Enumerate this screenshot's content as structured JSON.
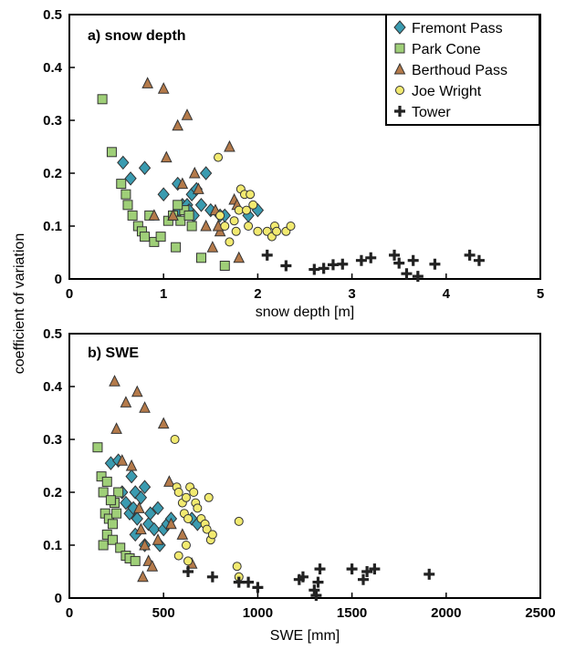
{
  "ylabel": "coefficient of variation",
  "symbols": {
    "Fremont Pass": {
      "shape": "diamond",
      "color": "#3a9bb0"
    },
    "Park Cone": {
      "shape": "square",
      "color": "#9fcf78"
    },
    "Berthoud Pass": {
      "shape": "triangle",
      "color": "#b47a4a"
    },
    "Joe Wright": {
      "shape": "circle",
      "color": "#f2ea70"
    },
    "Tower": {
      "shape": "cross",
      "color": "#222222"
    }
  },
  "chart_data": [
    {
      "type": "scatter",
      "title": "a) snow depth",
      "xlabel": "snow depth [m]",
      "ylabel": "",
      "xlim": [
        0,
        5
      ],
      "ylim": [
        0,
        0.5
      ],
      "xticks": [
        "0",
        "1",
        "2",
        "3",
        "4",
        "5"
      ],
      "yticks": [
        "0",
        "0.1",
        "0.2",
        "0.3",
        "0.4",
        "0.5"
      ],
      "legend": "top-right",
      "series": [
        {
          "name": "Fremont Pass",
          "points": [
            [
              0.57,
              0.22
            ],
            [
              0.65,
              0.19
            ],
            [
              0.8,
              0.21
            ],
            [
              1.0,
              0.16
            ],
            [
              1.15,
              0.18
            ],
            [
              1.17,
              0.13
            ],
            [
              1.2,
              0.14
            ],
            [
              1.25,
              0.14
            ],
            [
              1.3,
              0.16
            ],
            [
              1.35,
              0.17
            ],
            [
              1.27,
              0.13
            ],
            [
              1.32,
              0.12
            ],
            [
              1.4,
              0.14
            ],
            [
              1.45,
              0.2
            ],
            [
              1.5,
              0.13
            ],
            [
              1.6,
              0.12
            ],
            [
              1.65,
              0.12
            ],
            [
              1.9,
              0.12
            ],
            [
              2.0,
              0.13
            ]
          ]
        },
        {
          "name": "Park Cone",
          "points": [
            [
              0.35,
              0.34
            ],
            [
              0.45,
              0.24
            ],
            [
              0.55,
              0.18
            ],
            [
              0.6,
              0.16
            ],
            [
              0.62,
              0.14
            ],
            [
              0.67,
              0.12
            ],
            [
              0.73,
              0.1
            ],
            [
              0.77,
              0.09
            ],
            [
              0.8,
              0.08
            ],
            [
              0.85,
              0.12
            ],
            [
              0.9,
              0.07
            ],
            [
              0.97,
              0.08
            ],
            [
              1.05,
              0.11
            ],
            [
              1.1,
              0.12
            ],
            [
              1.13,
              0.06
            ],
            [
              1.18,
              0.11
            ],
            [
              1.22,
              0.13
            ],
            [
              1.27,
              0.12
            ],
            [
              1.3,
              0.1
            ],
            [
              1.15,
              0.14
            ],
            [
              1.4,
              0.04
            ],
            [
              1.65,
              0.025
            ]
          ]
        },
        {
          "name": "Berthoud Pass",
          "points": [
            [
              0.83,
              0.37
            ],
            [
              1.0,
              0.36
            ],
            [
              1.15,
              0.29
            ],
            [
              1.25,
              0.31
            ],
            [
              1.03,
              0.23
            ],
            [
              0.9,
              0.12
            ],
            [
              1.1,
              0.12
            ],
            [
              1.2,
              0.18
            ],
            [
              1.33,
              0.2
            ],
            [
              1.37,
              0.17
            ],
            [
              1.45,
              0.1
            ],
            [
              1.52,
              0.06
            ],
            [
              1.55,
              0.13
            ],
            [
              1.6,
              0.09
            ],
            [
              1.7,
              0.25
            ],
            [
              1.75,
              0.15
            ],
            [
              1.58,
              0.1
            ],
            [
              1.78,
              0.14
            ],
            [
              1.8,
              0.04
            ]
          ]
        },
        {
          "name": "Joe Wright",
          "points": [
            [
              1.58,
              0.23
            ],
            [
              1.6,
              0.12
            ],
            [
              1.65,
              0.1
            ],
            [
              1.7,
              0.07
            ],
            [
              1.75,
              0.11
            ],
            [
              1.77,
              0.09
            ],
            [
              1.8,
              0.13
            ],
            [
              1.82,
              0.17
            ],
            [
              1.86,
              0.16
            ],
            [
              1.88,
              0.13
            ],
            [
              1.92,
              0.16
            ],
            [
              1.95,
              0.14
            ],
            [
              1.9,
              0.1
            ],
            [
              2.0,
              0.09
            ],
            [
              2.1,
              0.09
            ],
            [
              2.15,
              0.08
            ],
            [
              2.18,
              0.1
            ],
            [
              2.2,
              0.09
            ],
            [
              2.3,
              0.09
            ],
            [
              2.35,
              0.1
            ]
          ]
        },
        {
          "name": "Tower",
          "points": [
            [
              2.1,
              0.045
            ],
            [
              2.3,
              0.025
            ],
            [
              2.6,
              0.018
            ],
            [
              2.7,
              0.02
            ],
            [
              2.8,
              0.027
            ],
            [
              2.9,
              0.028
            ],
            [
              3.1,
              0.035
            ],
            [
              3.2,
              0.04
            ],
            [
              3.45,
              0.045
            ],
            [
              3.5,
              0.03
            ],
            [
              3.58,
              0.01
            ],
            [
              3.65,
              0.035
            ],
            [
              3.7,
              0.005
            ],
            [
              3.88,
              0.028
            ],
            [
              4.25,
              0.045
            ],
            [
              4.35,
              0.035
            ]
          ]
        }
      ]
    },
    {
      "type": "scatter",
      "title": "b) SWE",
      "xlabel": "SWE [mm]",
      "ylabel": "",
      "xlim": [
        0,
        2500
      ],
      "ylim": [
        0,
        0.5
      ],
      "xticks": [
        "0",
        "500",
        "1000",
        "1500",
        "2000",
        "2500"
      ],
      "yticks": [
        "0",
        "0.1",
        "0.2",
        "0.3",
        "0.4",
        "0.5"
      ],
      "series": [
        {
          "name": "Fremont Pass",
          "points": [
            [
              220,
              0.255
            ],
            [
              260,
              0.26
            ],
            [
              330,
              0.23
            ],
            [
              280,
              0.2
            ],
            [
              300,
              0.18
            ],
            [
              320,
              0.16
            ],
            [
              340,
              0.17
            ],
            [
              350,
              0.2
            ],
            [
              360,
              0.15
            ],
            [
              380,
              0.19
            ],
            [
              400,
              0.21
            ],
            [
              420,
              0.14
            ],
            [
              430,
              0.16
            ],
            [
              450,
              0.13
            ],
            [
              470,
              0.17
            ],
            [
              480,
              0.1
            ],
            [
              500,
              0.13
            ],
            [
              520,
              0.14
            ],
            [
              540,
              0.15
            ],
            [
              650,
              0.15
            ],
            [
              680,
              0.14
            ],
            [
              350,
              0.12
            ],
            [
              400,
              0.1
            ]
          ]
        },
        {
          "name": "Park Cone",
          "points": [
            [
              150,
              0.285
            ],
            [
              170,
              0.23
            ],
            [
              180,
              0.2
            ],
            [
              200,
              0.22
            ],
            [
              190,
              0.16
            ],
            [
              210,
              0.15
            ],
            [
              230,
              0.14
            ],
            [
              200,
              0.12
            ],
            [
              240,
              0.18
            ],
            [
              180,
              0.1
            ],
            [
              230,
              0.11
            ],
            [
              270,
              0.095
            ],
            [
              300,
              0.08
            ],
            [
              320,
              0.075
            ],
            [
              260,
              0.2
            ],
            [
              250,
              0.16
            ],
            [
              220,
              0.185
            ],
            [
              350,
              0.07
            ]
          ]
        },
        {
          "name": "Berthoud Pass",
          "points": [
            [
              240,
              0.41
            ],
            [
              300,
              0.37
            ],
            [
              360,
              0.39
            ],
            [
              400,
              0.36
            ],
            [
              500,
              0.33
            ],
            [
              250,
              0.32
            ],
            [
              280,
              0.26
            ],
            [
              330,
              0.25
            ],
            [
              530,
              0.22
            ],
            [
              370,
              0.17
            ],
            [
              380,
              0.13
            ],
            [
              400,
              0.1
            ],
            [
              420,
              0.07
            ],
            [
              390,
              0.04
            ],
            [
              440,
              0.06
            ],
            [
              470,
              0.11
            ],
            [
              540,
              0.14
            ],
            [
              600,
              0.12
            ],
            [
              650,
              0.065
            ]
          ]
        },
        {
          "name": "Joe Wright",
          "points": [
            [
              560,
              0.3
            ],
            [
              570,
              0.21
            ],
            [
              580,
              0.2
            ],
            [
              600,
              0.18
            ],
            [
              610,
              0.16
            ],
            [
              620,
              0.19
            ],
            [
              630,
              0.15
            ],
            [
              640,
              0.21
            ],
            [
              660,
              0.2
            ],
            [
              670,
              0.18
            ],
            [
              680,
              0.17
            ],
            [
              700,
              0.15
            ],
            [
              720,
              0.14
            ],
            [
              730,
              0.13
            ],
            [
              740,
              0.19
            ],
            [
              750,
              0.11
            ],
            [
              760,
              0.12
            ],
            [
              620,
              0.1
            ],
            [
              580,
              0.08
            ],
            [
              630,
              0.07
            ],
            [
              900,
              0.145
            ],
            [
              890,
              0.06
            ],
            [
              900,
              0.04
            ]
          ]
        },
        {
          "name": "Tower",
          "points": [
            [
              630,
              0.05
            ],
            [
              760,
              0.04
            ],
            [
              900,
              0.03
            ],
            [
              950,
              0.03
            ],
            [
              1000,
              0.02
            ],
            [
              1220,
              0.035
            ],
            [
              1240,
              0.04
            ],
            [
              1300,
              0.015
            ],
            [
              1310,
              0.005
            ],
            [
              1320,
              0.03
            ],
            [
              1330,
              0.055
            ],
            [
              1500,
              0.055
            ],
            [
              1560,
              0.035
            ],
            [
              1580,
              0.05
            ],
            [
              1620,
              0.055
            ],
            [
              1910,
              0.045
            ]
          ]
        }
      ]
    }
  ]
}
